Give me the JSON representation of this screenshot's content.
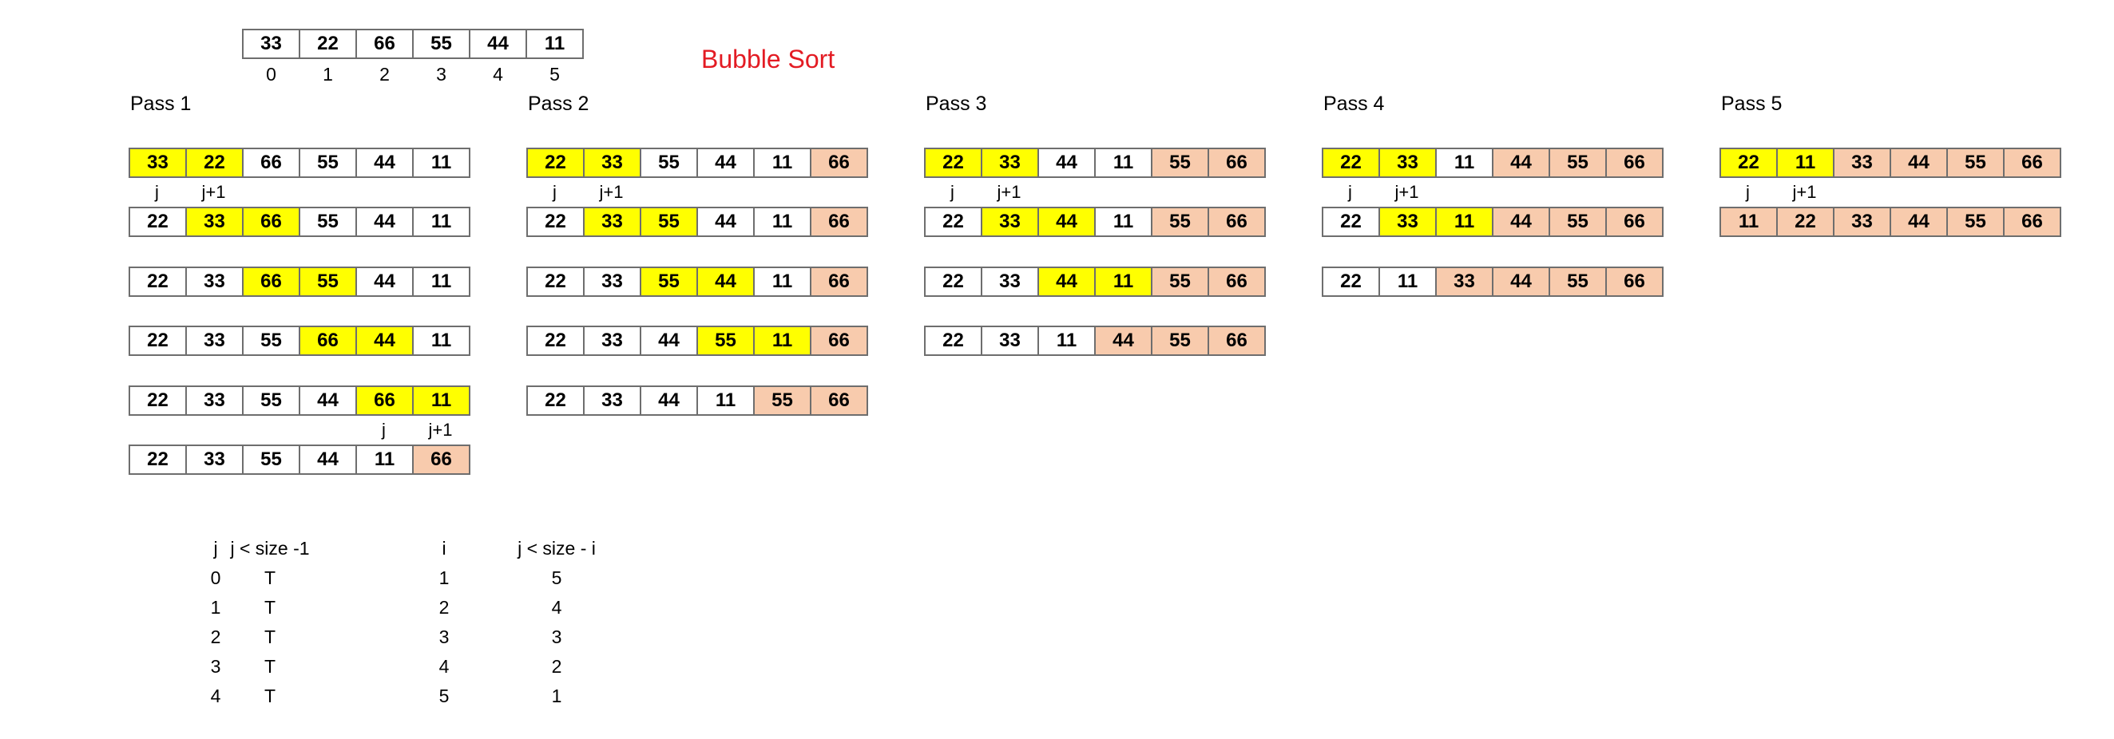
{
  "title": "Bubble Sort",
  "initial": {
    "values": [
      "33",
      "22",
      "66",
      "55",
      "44",
      "11"
    ],
    "indices": [
      "0",
      "1",
      "2",
      "3",
      "4",
      "5"
    ]
  },
  "passes": [
    {
      "label": "Pass 1",
      "rows": [
        [
          "33",
          "22",
          "66",
          "55",
          "44",
          "11"
        ],
        [
          "22",
          "33",
          "66",
          "55",
          "44",
          "11"
        ],
        [
          "22",
          "33",
          "66",
          "55",
          "44",
          "11"
        ],
        [
          "22",
          "33",
          "55",
          "66",
          "44",
          "11"
        ],
        [
          "22",
          "33",
          "55",
          "44",
          "66",
          "11"
        ],
        [
          "22",
          "33",
          "55",
          "44",
          "11",
          "66"
        ]
      ]
    },
    {
      "label": "Pass 2",
      "rows": [
        [
          "22",
          "33",
          "55",
          "44",
          "11",
          "66"
        ],
        [
          "22",
          "33",
          "55",
          "44",
          "11",
          "66"
        ],
        [
          "22",
          "33",
          "55",
          "44",
          "11",
          "66"
        ],
        [
          "22",
          "33",
          "44",
          "55",
          "11",
          "66"
        ],
        [
          "22",
          "33",
          "44",
          "11",
          "55",
          "66"
        ]
      ]
    },
    {
      "label": "Pass 3",
      "rows": [
        [
          "22",
          "33",
          "44",
          "11",
          "55",
          "66"
        ],
        [
          "22",
          "33",
          "44",
          "11",
          "55",
          "66"
        ],
        [
          "22",
          "33",
          "44",
          "11",
          "55",
          "66"
        ],
        [
          "22",
          "33",
          "11",
          "44",
          "55",
          "66"
        ]
      ]
    },
    {
      "label": "Pass 4",
      "rows": [
        [
          "22",
          "33",
          "11",
          "44",
          "55",
          "66"
        ],
        [
          "22",
          "33",
          "11",
          "44",
          "55",
          "66"
        ],
        [
          "22",
          "11",
          "33",
          "44",
          "55",
          "66"
        ]
      ]
    },
    {
      "label": "Pass 5",
      "rows": [
        [
          "22",
          "11",
          "33",
          "44",
          "55",
          "66"
        ],
        [
          "11",
          "22",
          "33",
          "44",
          "55",
          "66"
        ]
      ]
    }
  ],
  "pointer_labels": {
    "j": "j",
    "j1": "j+1"
  },
  "table": {
    "headers": [
      "j",
      "j < size -1",
      "i",
      "j < size - i"
    ],
    "rows": [
      [
        "0",
        "T",
        "1",
        "5"
      ],
      [
        "1",
        "T",
        "2",
        "4"
      ],
      [
        "2",
        "T",
        "3",
        "3"
      ],
      [
        "3",
        "T",
        "4",
        "2"
      ],
      [
        "4",
        "T",
        "5",
        "1"
      ]
    ]
  },
  "colors": {
    "compare": "#ffff00",
    "sorted": "#f8cbad",
    "title": "#e31b23"
  }
}
